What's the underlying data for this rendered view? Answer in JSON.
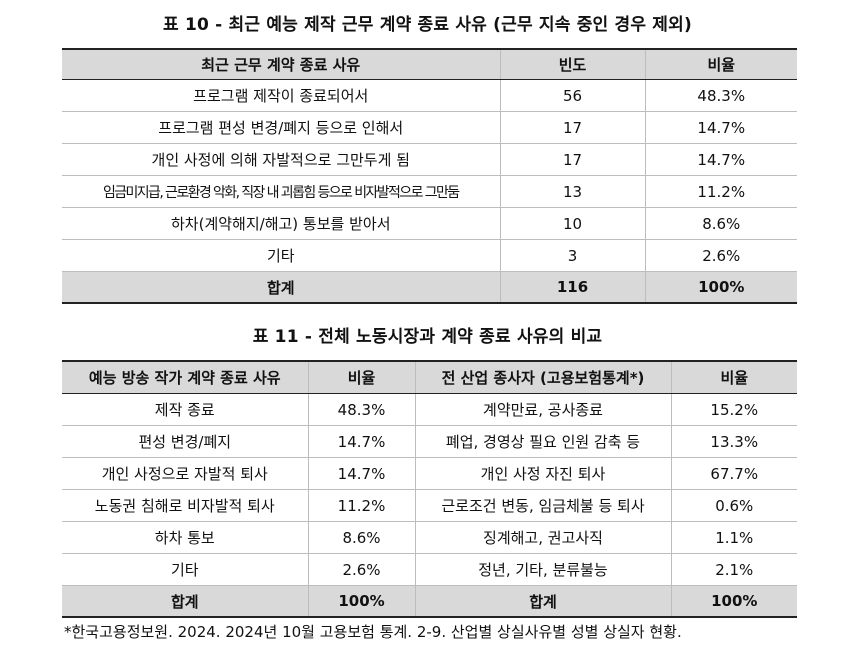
{
  "table1": {
    "caption": "표 10 - 최근 예능 제작 근무 계약 종료 사유 (근무 지속 중인 경우 제외)",
    "headers": [
      "최근 근무 계약 종료 사유",
      "빈도",
      "비율"
    ],
    "rows": [
      [
        "프로그램 제작이 종료되어서",
        "56",
        "48.3%"
      ],
      [
        "프로그램 편성 변경/폐지 등으로 인해서",
        "17",
        "14.7%"
      ],
      [
        "개인 사정에 의해 자발적으로 그만두게 됨",
        "17",
        "14.7%"
      ],
      [
        "임금미지급, 근로환경 악화, 직장 내 괴롭힘 등으로 비자발적으로 그만둠",
        "13",
        "11.2%"
      ],
      [
        "하차(계약해지/해고) 통보를 받아서",
        "10",
        "8.6%"
      ],
      [
        "기타",
        "3",
        "2.6%"
      ]
    ],
    "total": [
      "합계",
      "116",
      "100%"
    ]
  },
  "table2": {
    "caption": "표 11 - 전체 노동시장과 계약 종료 사유의 비교",
    "headers": [
      "예능 방송 작가 계약 종료 사유",
      "비율",
      "전 산업 종사자 (고용보험통계*)",
      "비율"
    ],
    "rows": [
      [
        "제작 종료",
        "48.3%",
        "계약만료, 공사종료",
        "15.2%"
      ],
      [
        "편성 변경/폐지",
        "14.7%",
        "폐업, 경영상 필요 인원 감축 등",
        "13.3%"
      ],
      [
        "개인 사정으로 자발적 퇴사",
        "14.7%",
        "개인 사정 자진 퇴사",
        "67.7%"
      ],
      [
        "노동권 침해로 비자발적 퇴사",
        "11.2%",
        "근로조건 변동, 임금체불 등 퇴사",
        "0.6%"
      ],
      [
        "하차 통보",
        "8.6%",
        "징계해고, 권고사직",
        "1.1%"
      ],
      [
        "기타",
        "2.6%",
        "정년, 기타, 분류불능",
        "2.1%"
      ]
    ],
    "total": [
      "합계",
      "100%",
      "합계",
      "100%"
    ]
  },
  "footnote": "*한국고용정보원. 2024. 2024년 10월 고용보험 통계. 2-9. 산업별 상실사유별 성별 상실자 현황."
}
